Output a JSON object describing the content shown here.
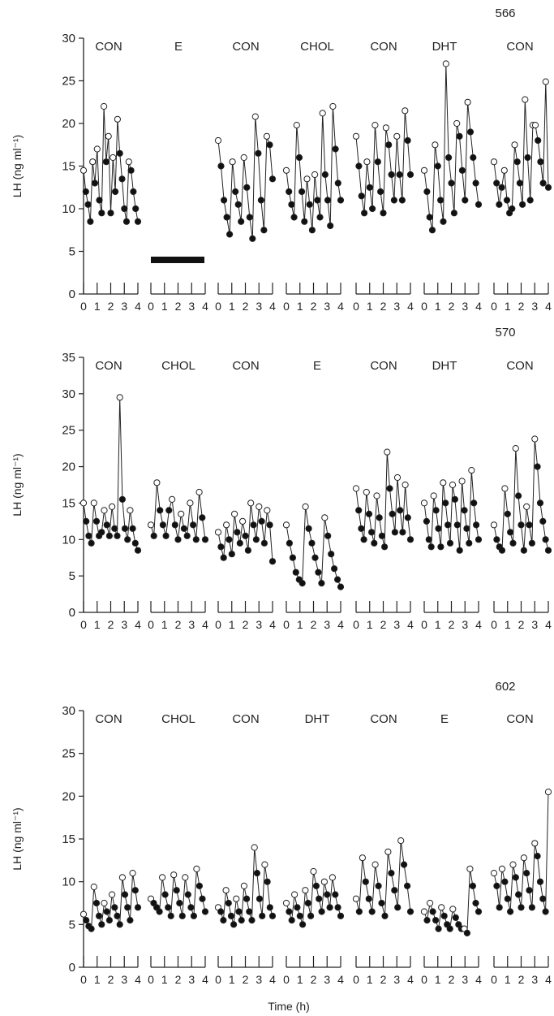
{
  "page": {
    "axis_color": "#222222",
    "open_fill": "#ffffff",
    "closed_fill": "#111111",
    "bar_color": "#111111"
  },
  "chart_data": [
    {
      "type": "scatter",
      "animal_id": "566",
      "ylabel": "LH (ng ml⁻¹)",
      "ylim": [
        0,
        30
      ],
      "yticks": [
        0,
        5,
        10,
        15,
        20,
        25,
        30
      ],
      "xticklabels": [
        "0",
        "1",
        "2",
        "3",
        "4"
      ],
      "bar": {
        "group": 1,
        "value": 4
      },
      "groups": [
        {
          "label": "CON",
          "values": [
            14.5,
            12,
            10.5,
            8.5,
            15.5,
            13,
            17,
            11,
            9.5,
            22,
            15.5,
            18.5,
            9.5,
            16,
            12,
            20.5,
            16.5,
            13.5,
            10,
            8.5,
            15.5,
            14.5,
            12,
            10,
            8.5
          ]
        },
        {
          "label": "E",
          "values": []
        },
        {
          "label": "CON",
          "values": [
            18,
            15,
            11,
            9,
            7,
            15.5,
            12,
            10.5,
            8.5,
            16,
            12.5,
            9,
            6.5,
            20.8,
            16.5,
            11,
            7.5,
            18.5,
            17.5,
            13.5
          ]
        },
        {
          "label": "CHOL",
          "values": [
            14.5,
            12,
            10.5,
            9,
            19.8,
            16,
            12,
            8.5,
            13.5,
            10.5,
            7.5,
            14,
            11,
            9,
            21.2,
            14,
            11,
            8,
            22,
            17,
            13,
            11
          ]
        },
        {
          "label": "CON",
          "values": [
            18.5,
            15,
            11.5,
            9.5,
            15.5,
            12.5,
            10,
            19.8,
            15.5,
            12,
            9.5,
            19.5,
            17.5,
            14,
            11,
            18.5,
            14,
            11,
            21.5,
            18,
            14
          ]
        },
        {
          "label": "DHT",
          "values": [
            14.5,
            12,
            9,
            7.5,
            17.5,
            15,
            11,
            8.5,
            27,
            16,
            13,
            9.5,
            20,
            18.5,
            14.5,
            11,
            22.5,
            19,
            16,
            13,
            10.5
          ]
        },
        {
          "label": "CON",
          "values": [
            15.5,
            13,
            10.5,
            12.5,
            14.5,
            11,
            9.5,
            10,
            17.5,
            15.5,
            13,
            10.5,
            22.8,
            16,
            11,
            19.8,
            19.8,
            18,
            15.5,
            13,
            24.9,
            12.5
          ]
        }
      ]
    },
    {
      "type": "scatter",
      "animal_id": "570",
      "ylabel": "LH (ng ml⁻¹)",
      "ylim": [
        0,
        35
      ],
      "yticks": [
        0,
        5,
        10,
        15,
        20,
        25,
        30,
        35
      ],
      "xticklabels": [
        "0",
        "1",
        "2",
        "3",
        "4"
      ],
      "groups": [
        {
          "label": "CON",
          "values": [
            15,
            12.5,
            10.5,
            9.5,
            15,
            12.5,
            10.5,
            11,
            14,
            12,
            10.5,
            14.5,
            11.5,
            10.5,
            29.5,
            15.5,
            11.5,
            10,
            14,
            11.5,
            9.5,
            8.5
          ]
        },
        {
          "label": "CHOL",
          "values": [
            12,
            10.5,
            17.8,
            14,
            12,
            10.5,
            14,
            15.5,
            12,
            10,
            13.5,
            11.5,
            10.5,
            15,
            12,
            10,
            16.5,
            13,
            10
          ]
        },
        {
          "label": "CON",
          "values": [
            11,
            9,
            7.5,
            12,
            10,
            8,
            13.5,
            11,
            9.5,
            12.5,
            10.5,
            8.5,
            15,
            12,
            10,
            14.5,
            12.5,
            9.5,
            14,
            12,
            7
          ]
        },
        {
          "label": "E",
          "values": [
            12,
            9.5,
            7.5,
            5.5,
            4.5,
            4,
            14.5,
            11.5,
            9.5,
            7.5,
            5.5,
            4,
            13,
            10.5,
            8,
            6,
            4.5,
            3.5
          ]
        },
        {
          "label": "CON",
          "values": [
            17,
            14,
            11.5,
            10,
            16.5,
            13.5,
            11,
            9.5,
            16,
            13,
            10.5,
            9,
            22,
            17,
            13.5,
            11,
            18.5,
            14,
            11,
            17.5,
            13,
            10
          ]
        },
        {
          "label": "DHT",
          "values": [
            15,
            12.5,
            10,
            9,
            16,
            14,
            11.5,
            9,
            17.8,
            15,
            12,
            9.5,
            17.5,
            15.5,
            12,
            8.5,
            18,
            14,
            11.5,
            9.5,
            19.5,
            15,
            12,
            10
          ]
        },
        {
          "label": "CON",
          "values": [
            12,
            10,
            9,
            8.5,
            17,
            13.5,
            11,
            9.5,
            22.5,
            16,
            12,
            8.5,
            14.5,
            12,
            9.5,
            23.8,
            20,
            15,
            12.5,
            10,
            8.5
          ]
        }
      ]
    },
    {
      "type": "scatter",
      "animal_id": "602",
      "ylabel": "LH (ng ml⁻¹)",
      "xlabel": "Time (h)",
      "ylim": [
        0,
        30
      ],
      "yticks": [
        0,
        5,
        10,
        15,
        20,
        25,
        30
      ],
      "xticklabels": [
        "0",
        "1",
        "2",
        "3",
        "4"
      ],
      "groups": [
        {
          "label": "CON",
          "values": [
            6.2,
            5.5,
            4.8,
            4.5,
            9.4,
            7.5,
            6,
            5,
            7.5,
            6.5,
            5.5,
            8.5,
            7,
            6,
            5,
            10.5,
            8.5,
            7,
            5.5,
            11,
            9,
            7
          ]
        },
        {
          "label": "CHOL",
          "values": [
            8,
            7.5,
            7,
            6.5,
            10.5,
            8.5,
            7,
            6,
            10.8,
            9,
            7.5,
            6,
            10.5,
            8.5,
            7,
            6,
            11.5,
            9.5,
            8,
            6.5
          ]
        },
        {
          "label": "CON",
          "values": [
            7,
            6.5,
            5.5,
            9,
            7.5,
            6,
            5,
            8,
            6.5,
            5.5,
            9.5,
            8,
            6.5,
            5.5,
            14,
            11,
            8,
            6,
            12,
            10,
            7,
            6
          ]
        },
        {
          "label": "DHT",
          "values": [
            7.5,
            6.5,
            5.5,
            8.5,
            7,
            6,
            5,
            9,
            7.5,
            6,
            11.2,
            9.5,
            8,
            6.5,
            10,
            8.5,
            7,
            10.5,
            8.5,
            7,
            6
          ]
        },
        {
          "label": "CON",
          "values": [
            8,
            6.5,
            12.8,
            10,
            8,
            6.5,
            12,
            9.5,
            7.5,
            6,
            13.5,
            11,
            9,
            7,
            14.8,
            12,
            9.5,
            6.5
          ]
        },
        {
          "label": "E",
          "values": [
            6.5,
            5.5,
            7.5,
            6.5,
            5.5,
            4.5,
            7,
            6,
            5,
            4.5,
            6.8,
            5.8,
            5,
            4.5,
            4.5,
            4,
            11.5,
            9.5,
            7.5,
            6.5
          ]
        },
        {
          "label": "CON",
          "values": [
            11,
            9.5,
            7,
            11.5,
            10,
            8,
            6.5,
            12,
            10.5,
            8.5,
            7,
            12.8,
            11,
            9,
            7,
            14.5,
            13,
            10,
            8,
            6.5,
            20.5
          ]
        }
      ]
    }
  ]
}
